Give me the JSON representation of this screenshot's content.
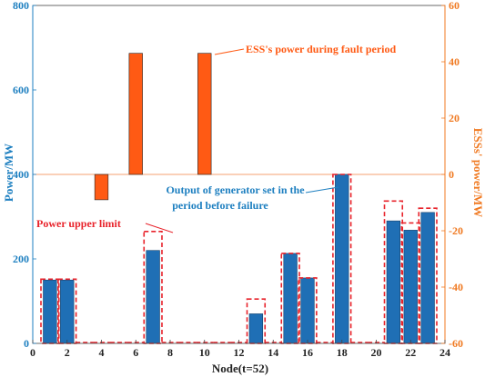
{
  "chart_data": {
    "type": "bar",
    "xlabel": "Node(t=52)",
    "ylabel_left": "Power/MW",
    "ylabel_right": "ESSs' power/MW",
    "xlim": [
      0,
      24
    ],
    "ylim_left": [
      0,
      800
    ],
    "ylim_right": [
      -60,
      60
    ],
    "x_ticks": [
      0,
      2,
      4,
      6,
      8,
      10,
      12,
      14,
      16,
      18,
      20,
      22,
      24
    ],
    "y_ticks_left": [
      0,
      200,
      400,
      600,
      800
    ],
    "y_ticks_right": [
      -60,
      -40,
      -20,
      0,
      20,
      40,
      60
    ],
    "series": [
      {
        "name": "Output of generator set in the period before failure",
        "axis": "left",
        "color": "#1f6fb5",
        "x": [
          1,
          2,
          7,
          13,
          15,
          16,
          18,
          21,
          22,
          23
        ],
        "values": [
          150,
          150,
          220,
          70,
          213,
          155,
          400,
          290,
          268,
          310
        ]
      },
      {
        "name": "Power upper limit",
        "axis": "left",
        "style": "dashed-outline",
        "color": "#e8222a",
        "x": [
          1,
          2,
          3,
          4,
          5,
          6,
          7,
          8,
          9,
          10,
          11,
          12,
          13,
          14,
          15,
          16,
          17,
          18,
          19,
          20,
          21,
          22,
          23
        ],
        "values": [
          152,
          152,
          0,
          0,
          0,
          0,
          265,
          0,
          0,
          0,
          0,
          0,
          105,
          0,
          213,
          155,
          0,
          400,
          0,
          0,
          337,
          285,
          320
        ]
      },
      {
        "name": "ESS's power during fault period",
        "axis": "right",
        "color": "#ff5a14",
        "x": [
          4,
          6,
          10
        ],
        "values": [
          -9,
          43,
          43
        ]
      }
    ],
    "annotations": [
      "ESS's power during fault period",
      "Output of generator set in the period before failure",
      "Power upper limit"
    ],
    "grid": false
  }
}
